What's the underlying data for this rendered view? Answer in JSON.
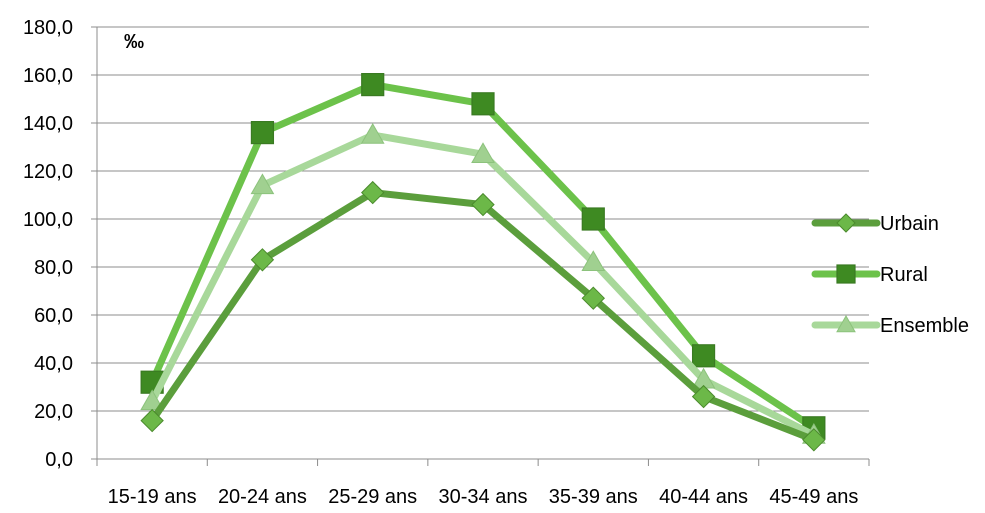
{
  "chart_data": {
    "type": "line",
    "unit": "‰",
    "categories": [
      "15-19 ans",
      "20-24 ans",
      "25-29 ans",
      "30-34 ans",
      "35-39 ans",
      "40-44 ans",
      "45-49 ans"
    ],
    "ylim": [
      0,
      180
    ],
    "yticks": [
      "0,0",
      "20,0",
      "40,0",
      "60,0",
      "80,0",
      "100,0",
      "120,0",
      "140,0",
      "160,0",
      "180,0"
    ],
    "grid": true,
    "legend_position": "right",
    "series": [
      {
        "name": "Urbain",
        "marker": "diamond",
        "color": "#5b9e3c",
        "values": [
          16,
          83,
          111,
          106,
          67,
          26,
          8
        ]
      },
      {
        "name": "Rural",
        "marker": "square",
        "color": "#6cc24a",
        "values": [
          32,
          136,
          156,
          148,
          100,
          43,
          13
        ]
      },
      {
        "name": "Ensemble",
        "marker": "triangle",
        "color": "#a8d89a",
        "values": [
          24,
          114,
          135,
          127,
          82,
          33,
          10
        ]
      }
    ]
  }
}
